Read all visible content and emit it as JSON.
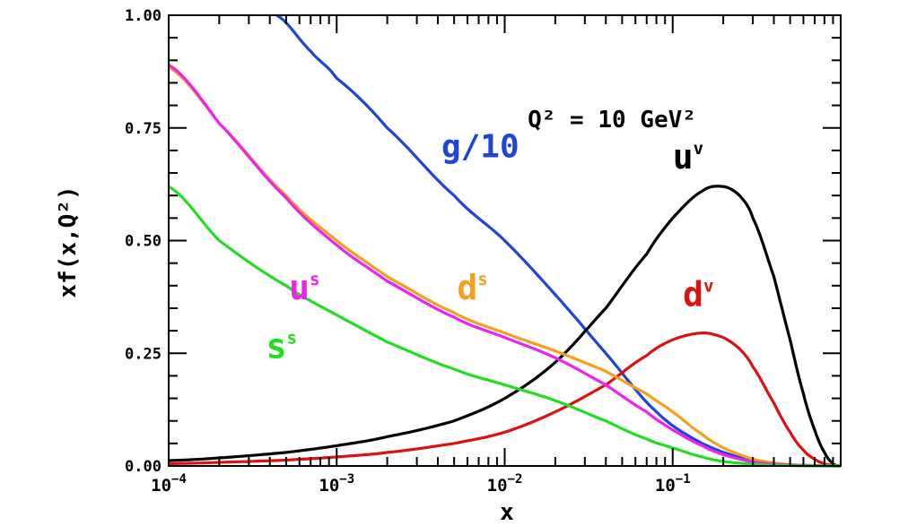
{
  "chart_data": {
    "type": "line",
    "title": "",
    "annotation": {
      "text": "Q² = 10 GeV²"
    },
    "xlabel": "x",
    "ylabel": "xf(x,Q²)",
    "xscale": "log",
    "xlim": [
      0.0001,
      1
    ],
    "ylim": [
      0,
      1
    ],
    "grid": false,
    "xticks": [
      {
        "value": 0.0001,
        "base": "10",
        "exp": "−4"
      },
      {
        "value": 0.001,
        "base": "10",
        "exp": "−3"
      },
      {
        "value": 0.01,
        "base": "10",
        "exp": "−2"
      },
      {
        "value": 0.1,
        "base": "10",
        "exp": "−1"
      }
    ],
    "yticks": [
      {
        "value": 0,
        "label": "0.00"
      },
      {
        "value": 0.25,
        "label": "0.25"
      },
      {
        "value": 0.5,
        "label": "0.50"
      },
      {
        "value": 0.75,
        "label": "0.75"
      },
      {
        "value": 1,
        "label": "1.00"
      }
    ],
    "series": [
      {
        "key": "g",
        "name": "g/10",
        "base": "g/10",
        "sup": "",
        "color": "#1f45d6",
        "labelPos": [
          0.0042,
          0.685
        ],
        "x": [
          0.00044,
          0.0007,
          0.001,
          0.002,
          0.005,
          0.01,
          0.02,
          0.04,
          0.08,
          0.15,
          0.3,
          0.5,
          0.8,
          1.0
        ],
        "y": [
          1.0,
          0.92,
          0.86,
          0.75,
          0.6,
          0.5,
          0.38,
          0.25,
          0.12,
          0.05,
          0.012,
          0.003,
          0.0003,
          0.0
        ]
      },
      {
        "key": "uv",
        "name": "uv",
        "base": "u",
        "sup": "v",
        "color": "#000000",
        "labelPos": [
          0.1,
          0.66
        ],
        "x": [
          0.0001,
          0.0002,
          0.0005,
          0.001,
          0.002,
          0.005,
          0.01,
          0.02,
          0.04,
          0.07,
          0.1,
          0.15,
          0.2,
          0.25,
          0.3,
          0.4,
          0.5,
          0.6,
          0.7,
          0.8,
          0.9,
          1.0
        ],
        "y": [
          0.012,
          0.018,
          0.03,
          0.045,
          0.065,
          0.1,
          0.15,
          0.23,
          0.35,
          0.47,
          0.55,
          0.61,
          0.62,
          0.6,
          0.55,
          0.42,
          0.28,
          0.16,
          0.08,
          0.03,
          0.005,
          0.0
        ]
      },
      {
        "key": "dv",
        "name": "dv",
        "base": "d",
        "sup": "v",
        "color": "#dd1111",
        "labelPos": [
          0.115,
          0.355
        ],
        "x": [
          0.0001,
          0.0002,
          0.0005,
          0.001,
          0.002,
          0.005,
          0.01,
          0.02,
          0.04,
          0.07,
          0.1,
          0.15,
          0.2,
          0.25,
          0.3,
          0.4,
          0.5,
          0.6,
          0.7,
          0.8,
          0.9,
          1.0
        ],
        "y": [
          0.005,
          0.008,
          0.013,
          0.02,
          0.03,
          0.05,
          0.075,
          0.12,
          0.18,
          0.245,
          0.28,
          0.295,
          0.285,
          0.26,
          0.22,
          0.14,
          0.075,
          0.035,
          0.015,
          0.005,
          0.001,
          0.0
        ]
      },
      {
        "key": "ds",
        "name": "ds",
        "base": "d",
        "sup": "s",
        "color": "#f5a01a",
        "labelPos": [
          0.0052,
          0.37
        ],
        "x": [
          0.0001,
          0.0002,
          0.0005,
          0.001,
          0.002,
          0.005,
          0.01,
          0.02,
          0.04,
          0.07,
          0.1,
          0.15,
          0.2,
          0.3,
          0.5,
          0.7,
          1.0
        ],
        "y": [
          0.885,
          0.76,
          0.6,
          0.5,
          0.42,
          0.34,
          0.295,
          0.255,
          0.21,
          0.16,
          0.12,
          0.07,
          0.04,
          0.015,
          0.003,
          0.001,
          0.0
        ]
      },
      {
        "key": "us",
        "name": "us",
        "base": "u",
        "sup": "s",
        "color": "#ee22ee",
        "labelPos": [
          0.00052,
          0.37
        ],
        "x": [
          0.0001,
          0.0002,
          0.0005,
          0.001,
          0.002,
          0.005,
          0.01,
          0.02,
          0.04,
          0.07,
          0.1,
          0.15,
          0.2,
          0.3,
          0.5,
          0.7,
          1.0
        ],
        "y": [
          0.89,
          0.76,
          0.595,
          0.49,
          0.41,
          0.33,
          0.285,
          0.24,
          0.18,
          0.12,
          0.08,
          0.045,
          0.025,
          0.009,
          0.002,
          0.0005,
          0.0
        ]
      },
      {
        "key": "ss",
        "name": "ss",
        "base": "s",
        "sup": "s",
        "color": "#22dd22",
        "labelPos": [
          0.00038,
          0.24
        ],
        "x": [
          0.0001,
          0.0002,
          0.0005,
          0.001,
          0.002,
          0.005,
          0.01,
          0.02,
          0.04,
          0.07,
          0.1,
          0.15,
          0.2,
          0.3,
          0.5,
          0.7,
          1.0
        ],
        "y": [
          0.62,
          0.5,
          0.4,
          0.335,
          0.275,
          0.215,
          0.18,
          0.145,
          0.1,
          0.06,
          0.04,
          0.02,
          0.01,
          0.004,
          0.001,
          0.0002,
          0.0
        ]
      }
    ]
  }
}
